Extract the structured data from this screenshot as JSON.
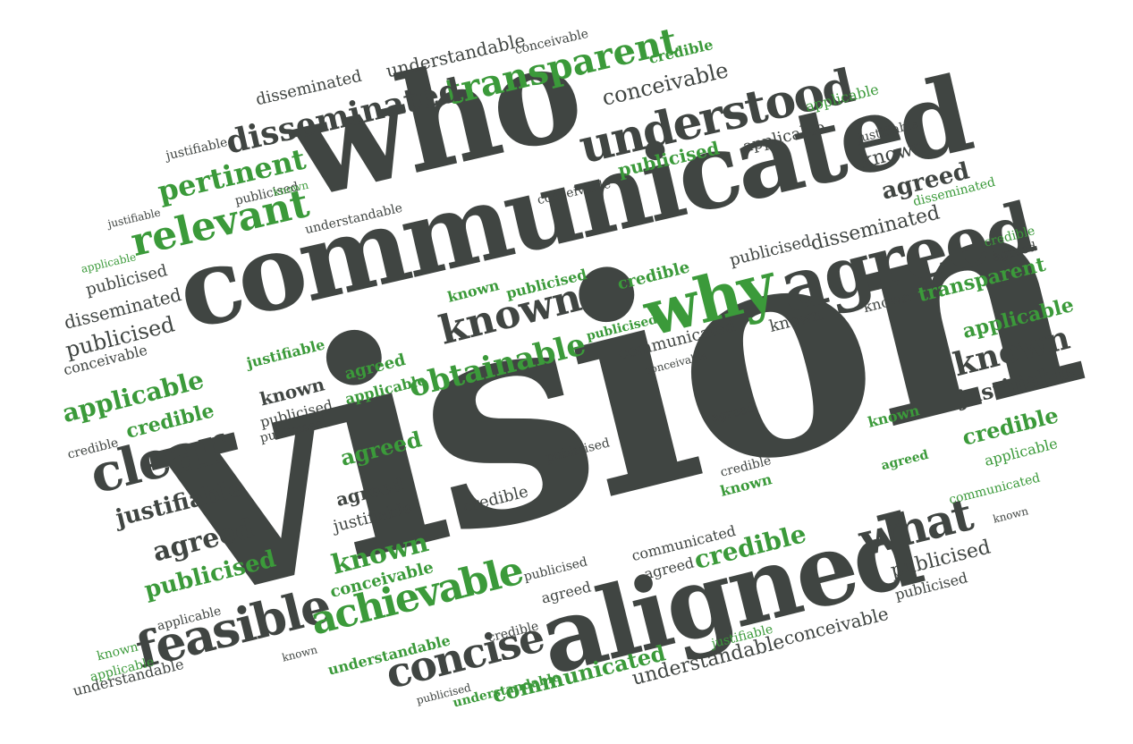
{
  "colors": {
    "dark": "#404542",
    "green": "#3b9a3a",
    "background": "#ffffff"
  },
  "words": {
    "vision": "vision",
    "communicated": "communicated",
    "who": "who",
    "agreed": "agreed",
    "aligned": "aligned",
    "why": "why",
    "understood": "understood",
    "transparent": "transparent",
    "relevant": "relevant",
    "pertinent": "pertinent",
    "disseminated": "disseminated",
    "known": "known",
    "obtainable": "obtainable",
    "clear": "clear",
    "feasible": "feasible",
    "concise": "concise",
    "achievable": "achievable",
    "what": "what",
    "justifiable": "justifiable",
    "credible": "credible",
    "publicised": "publicised",
    "applicable": "applicable",
    "conceivable": "conceivable",
    "understandable": "understandable"
  }
}
